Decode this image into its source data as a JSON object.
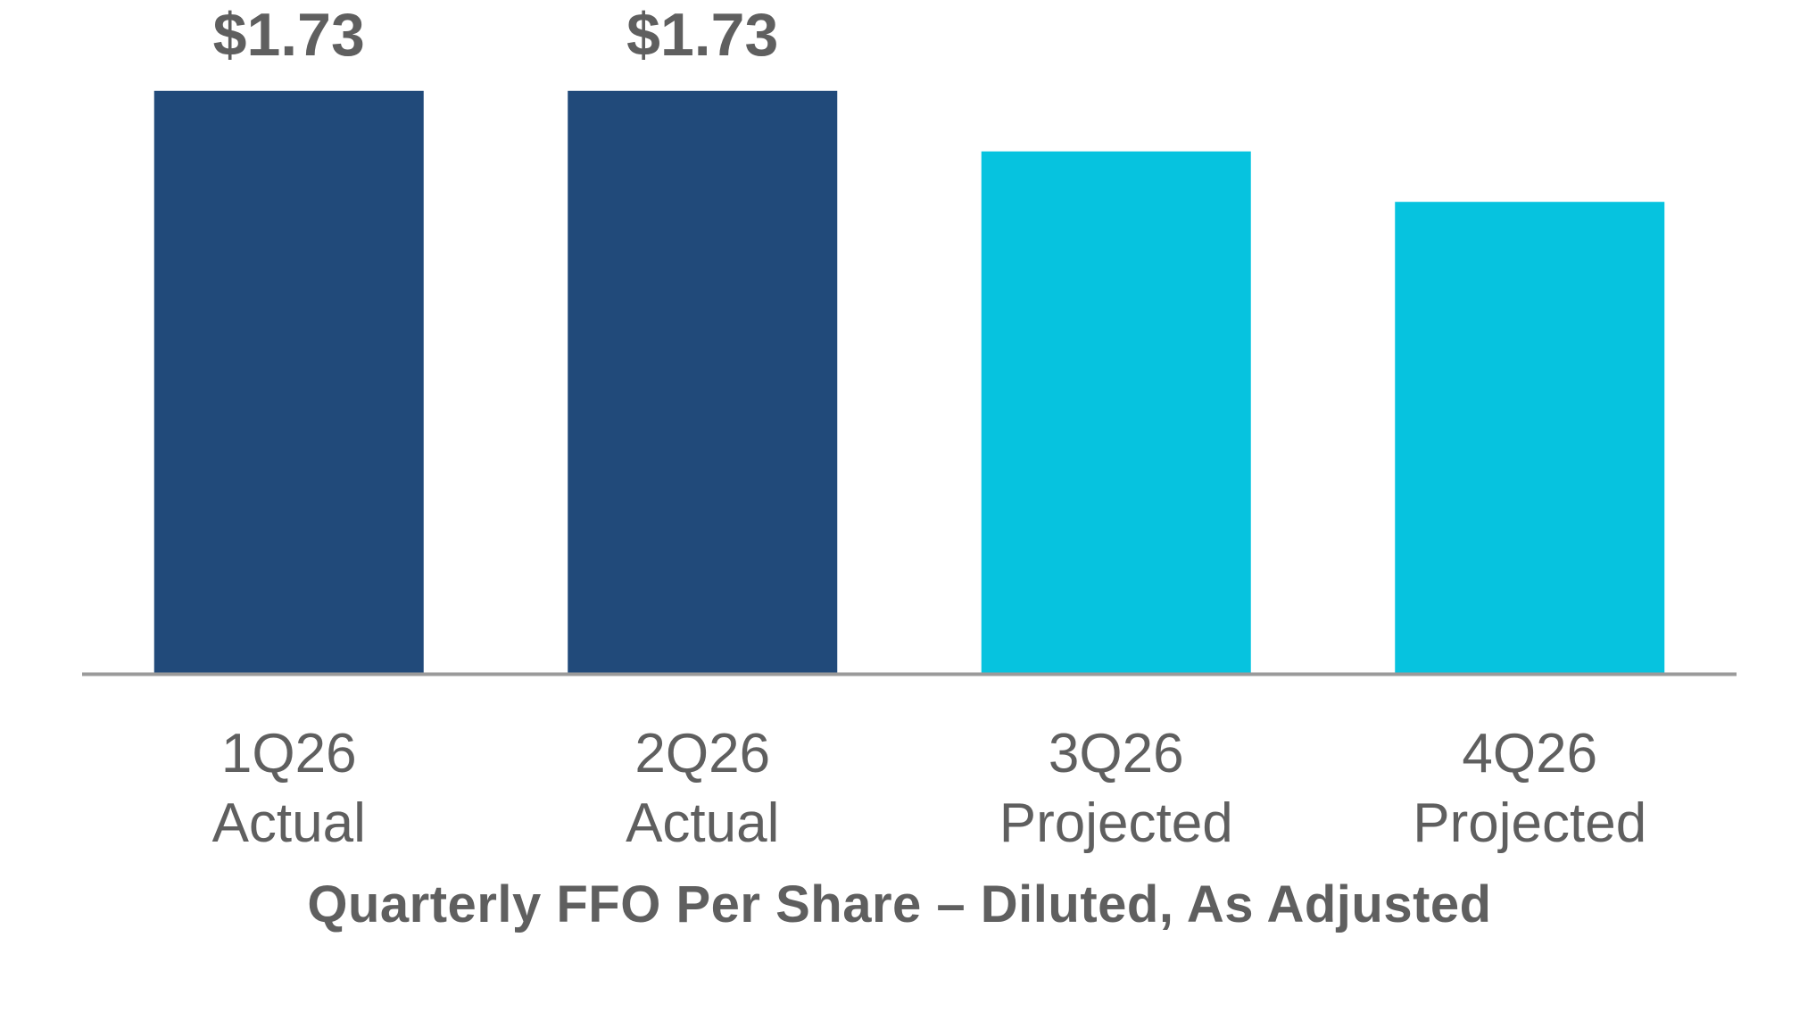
{
  "chart_data": {
    "type": "bar",
    "title": "",
    "xlabel": "Quarterly FFO Per Share – Diluted, As Adjusted",
    "ylabel": "",
    "ylim": [
      0,
      2.0
    ],
    "grid": false,
    "categories": [
      [
        "1Q26",
        "Actual"
      ],
      [
        "2Q26",
        "Actual"
      ],
      [
        "3Q26",
        "Projected"
      ],
      [
        "4Q26",
        "Projected"
      ]
    ],
    "values": [
      1.73,
      1.73,
      1.55,
      1.4
    ],
    "data_labels": [
      "$1.73",
      "$1.73",
      "",
      ""
    ],
    "bar_colors": [
      "#214A7A",
      "#214A7A",
      "#06C3DF",
      "#06C3DF"
    ],
    "axis_color": "#9a9a9a",
    "text_color": "#5f5f5f"
  }
}
